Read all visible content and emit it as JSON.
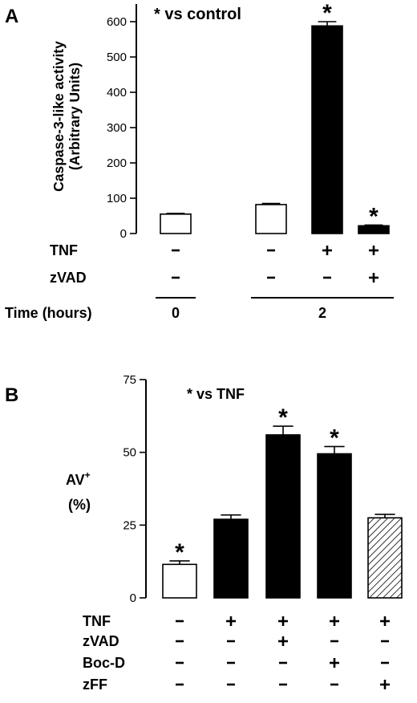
{
  "chart_data": [
    {
      "type": "bar",
      "panel": "A",
      "ylabel": "Caspase-3-like activity (Arbitrary Units)",
      "ylabel_lines": [
        "Caspase-3-like activity",
        "(Arbitrary Units)"
      ],
      "ylim": [
        0,
        650
      ],
      "yticks": [
        0,
        100,
        200,
        300,
        400,
        500,
        600
      ],
      "annotation": "* vs control",
      "legend": "none",
      "grid": false,
      "bars": [
        {
          "value": 55,
          "error": 2,
          "fill": "white",
          "star": false
        },
        {
          "value": 82,
          "error": 3,
          "fill": "black",
          "star": false,
          "outline_only": true
        },
        {
          "value": 588,
          "error": 12,
          "fill": "black",
          "star": true
        },
        {
          "value": 22,
          "error": 2,
          "fill": "black",
          "star": true
        }
      ],
      "conditions": [
        {
          "label": "TNF",
          "values": [
            "-",
            "-",
            "+",
            "+"
          ]
        },
        {
          "label": "zVAD",
          "values": [
            "-",
            "-",
            "-",
            "+"
          ]
        }
      ],
      "time_label": "Time (hours)",
      "time_groups": [
        {
          "label": "0",
          "bars": [
            0
          ]
        },
        {
          "label": "2",
          "bars": [
            1,
            2,
            3
          ]
        }
      ]
    },
    {
      "type": "bar",
      "panel": "B",
      "ylabel": "AV+ (%)",
      "ylabel_main": "AV",
      "ylabel_sup": "+",
      "ylabel_unit": "(%)",
      "ylim": [
        0,
        75
      ],
      "yticks": [
        0,
        25,
        50,
        75
      ],
      "annotation": "* vs TNF",
      "legend": "none",
      "grid": false,
      "bars": [
        {
          "value": 11.5,
          "error": 1.2,
          "fill": "white",
          "star": true
        },
        {
          "value": 27,
          "error": 1.5,
          "fill": "black",
          "star": false
        },
        {
          "value": 56,
          "error": 3,
          "fill": "black",
          "star": true
        },
        {
          "value": 49.5,
          "error": 2.5,
          "fill": "black",
          "star": true
        },
        {
          "value": 27.5,
          "error": 1.2,
          "fill": "hatched",
          "star": false
        }
      ],
      "conditions": [
        {
          "label": "TNF",
          "values": [
            "-",
            "+",
            "+",
            "+",
            "+"
          ]
        },
        {
          "label": "zVAD",
          "values": [
            "-",
            "-",
            "+",
            "-",
            "-"
          ]
        },
        {
          "label": "Boc-D",
          "values": [
            "-",
            "-",
            "-",
            "+",
            "-"
          ]
        },
        {
          "label": "zFF",
          "values": [
            "-",
            "-",
            "-",
            "-",
            "+"
          ]
        }
      ]
    }
  ],
  "star_symbol": "*"
}
